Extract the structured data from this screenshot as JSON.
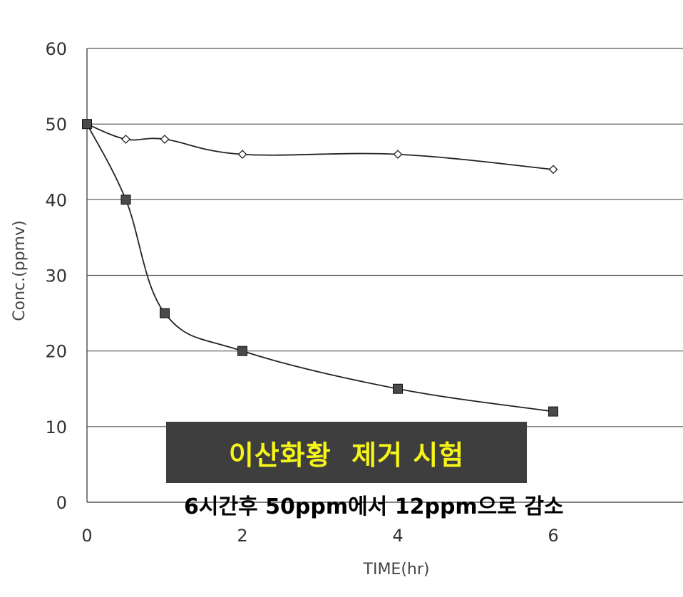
{
  "chart_data": {
    "type": "line",
    "xlabel": "TIME(hr)",
    "ylabel": "Conc.(ppmv)",
    "xlim": [
      0,
      7.5
    ],
    "ylim": [
      0,
      60
    ],
    "x_ticks": [
      "0",
      "2",
      "4",
      "6"
    ],
    "y_ticks": [
      "0",
      "10",
      "20",
      "30",
      "40",
      "50",
      "60"
    ],
    "grid": "horizontal",
    "series": [
      {
        "marker": "open-diamond",
        "x": [
          0,
          0.5,
          1,
          2,
          4,
          6
        ],
        "y": [
          50,
          48,
          48,
          46,
          46,
          44
        ]
      },
      {
        "marker": "filled-square",
        "x": [
          0,
          0.5,
          1,
          2,
          4,
          6
        ],
        "y": [
          50,
          40,
          25,
          20,
          15,
          12
        ]
      }
    ]
  },
  "annotation": {
    "title": "이산화황  제거 시험",
    "subtitle": "6시간후 50ppm에서 12ppm으로 감소"
  },
  "colors": {
    "line": "#222222",
    "grid": "#555555",
    "square_fill": "#4a4a4a",
    "banner_bg": "#3e3e3e",
    "banner_text": "#f5f517"
  }
}
